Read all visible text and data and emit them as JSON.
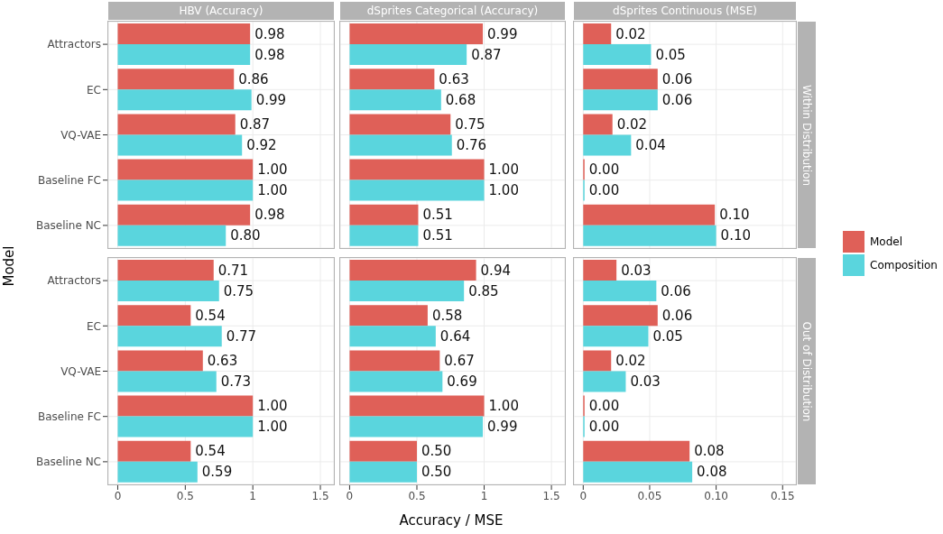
{
  "chart_data": [
    {
      "type": "bar",
      "orientation": "horizontal",
      "title": "HBV (Accuracy)",
      "categories": [
        "Attractors",
        "EC",
        "VQ-VAE",
        "Baseline FC",
        "Baseline NC"
      ],
      "xlim": [
        -0.07,
        1.6
      ],
      "xticks": [
        0,
        0.5,
        1,
        1.5
      ],
      "grid": true,
      "tick_labels": "y",
      "series": [
        {
          "color": "#df6058",
          "values": [
            0.98,
            0.86,
            0.87,
            1.0,
            0.98
          ],
          "value_labels": [
            "0.98",
            "0.86",
            "0.87",
            "1.00",
            "0.98"
          ]
        },
        {
          "color": "#5ad5dd",
          "values": [
            0.98,
            0.99,
            0.92,
            1.0,
            0.8
          ],
          "value_labels": [
            "0.98",
            "0.99",
            "0.92",
            "1.00",
            "0.80"
          ]
        }
      ]
    },
    {
      "type": "bar",
      "orientation": "horizontal",
      "title": "dSprites Categorical (Accuracy)",
      "categories": [
        null,
        null,
        null,
        null,
        null
      ],
      "xlim": [
        -0.07,
        1.6
      ],
      "xticks": [
        0,
        0.5,
        1,
        1.5
      ],
      "grid": true,
      "tick_labels": false,
      "series": [
        {
          "color": "#df6058",
          "values": [
            0.99,
            0.63,
            0.75,
            1.0,
            0.51
          ],
          "value_labels": [
            "0.99",
            "0.63",
            "0.75",
            "1.00",
            "0.51"
          ]
        },
        {
          "color": "#5ad5dd",
          "values": [
            0.87,
            0.68,
            0.76,
            1.0,
            0.51
          ],
          "value_labels": [
            "0.87",
            "0.68",
            "0.76",
            "1.00",
            "0.51"
          ]
        }
      ]
    },
    {
      "type": "bar",
      "orientation": "horizontal",
      "title": "dSprites Continuous (MSE)",
      "categories": [
        null,
        null,
        null,
        null,
        null
      ],
      "xlim": [
        -0.007,
        0.16
      ],
      "xticks": [
        0,
        0.05,
        0.1,
        0.15
      ],
      "grid": true,
      "tick_labels": false,
      "legend": "right",
      "annotations": [
        "Within Distribution"
      ],
      "series": [
        {
          "name": "Model",
          "color": "#df6058",
          "values": [
            0.021,
            0.056,
            0.022,
            0.001,
            0.099
          ],
          "value_labels": [
            "0.02",
            "0.06",
            "0.02",
            "0.00",
            "0.10"
          ]
        },
        {
          "name": "Composition",
          "color": "#5ad5dd",
          "values": [
            0.051,
            0.056,
            0.036,
            0.001,
            0.1
          ],
          "value_labels": [
            "0.05",
            "0.06",
            "0.04",
            "0.00",
            "0.10"
          ]
        }
      ]
    },
    {
      "type": "bar",
      "orientation": "horizontal",
      "ylabel": "Model",
      "categories": [
        "Attractors",
        "EC",
        "VQ-VAE",
        "Baseline FC",
        "Baseline NC"
      ],
      "xlim": [
        -0.07,
        1.6
      ],
      "xticks": [
        0,
        0.5,
        1,
        1.5
      ],
      "grid": true,
      "series": [
        {
          "color": "#df6058",
          "values": [
            0.71,
            0.54,
            0.63,
            1.0,
            0.54
          ],
          "value_labels": [
            "0.71",
            "0.54",
            "0.63",
            "1.00",
            "0.54"
          ]
        },
        {
          "color": "#5ad5dd",
          "values": [
            0.75,
            0.77,
            0.73,
            1.0,
            0.59
          ],
          "value_labels": [
            "0.75",
            "0.77",
            "0.73",
            "1.00",
            "0.59"
          ]
        }
      ]
    },
    {
      "type": "bar",
      "orientation": "horizontal",
      "xlabel": "Accuracy / MSE",
      "categories": [
        null,
        null,
        null,
        null,
        null
      ],
      "xlim": [
        -0.07,
        1.6
      ],
      "xticks": [
        0,
        0.5,
        1,
        1.5
      ],
      "grid": true,
      "tick_labels": "x",
      "series": [
        {
          "color": "#df6058",
          "values": [
            0.94,
            0.58,
            0.67,
            1.0,
            0.5
          ],
          "value_labels": [
            "0.94",
            "0.58",
            "0.67",
            "1.00",
            "0.50"
          ]
        },
        {
          "color": "#5ad5dd",
          "values": [
            0.85,
            0.64,
            0.69,
            0.99,
            0.5
          ],
          "value_labels": [
            "0.85",
            "0.64",
            "0.69",
            "0.99",
            "0.50"
          ]
        }
      ]
    },
    {
      "type": "bar",
      "orientation": "horizontal",
      "categories": [
        null,
        null,
        null,
        null,
        null
      ],
      "xlim": [
        -0.007,
        0.16
      ],
      "xticks": [
        0,
        {
          "value": 0.05,
          "label": "0.05"
        },
        {
          "value": 0.1,
          "label": "0.10"
        },
        {
          "value": 0.15,
          "label": "0.15"
        }
      ],
      "grid": true,
      "tick_labels": "x",
      "annotations": [
        "Out of Distribution"
      ],
      "series": [
        {
          "color": "#df6058",
          "values": [
            0.025,
            0.056,
            0.021,
            0.001,
            0.08
          ],
          "value_labels": [
            "0.03",
            "0.06",
            "0.02",
            "0.00",
            "0.08"
          ]
        },
        {
          "color": "#5ad5dd",
          "values": [
            0.055,
            0.049,
            0.032,
            0.001,
            0.082
          ],
          "value_labels": [
            "0.06",
            "0.05",
            "0.03",
            "0.00",
            "0.08"
          ]
        }
      ]
    }
  ]
}
